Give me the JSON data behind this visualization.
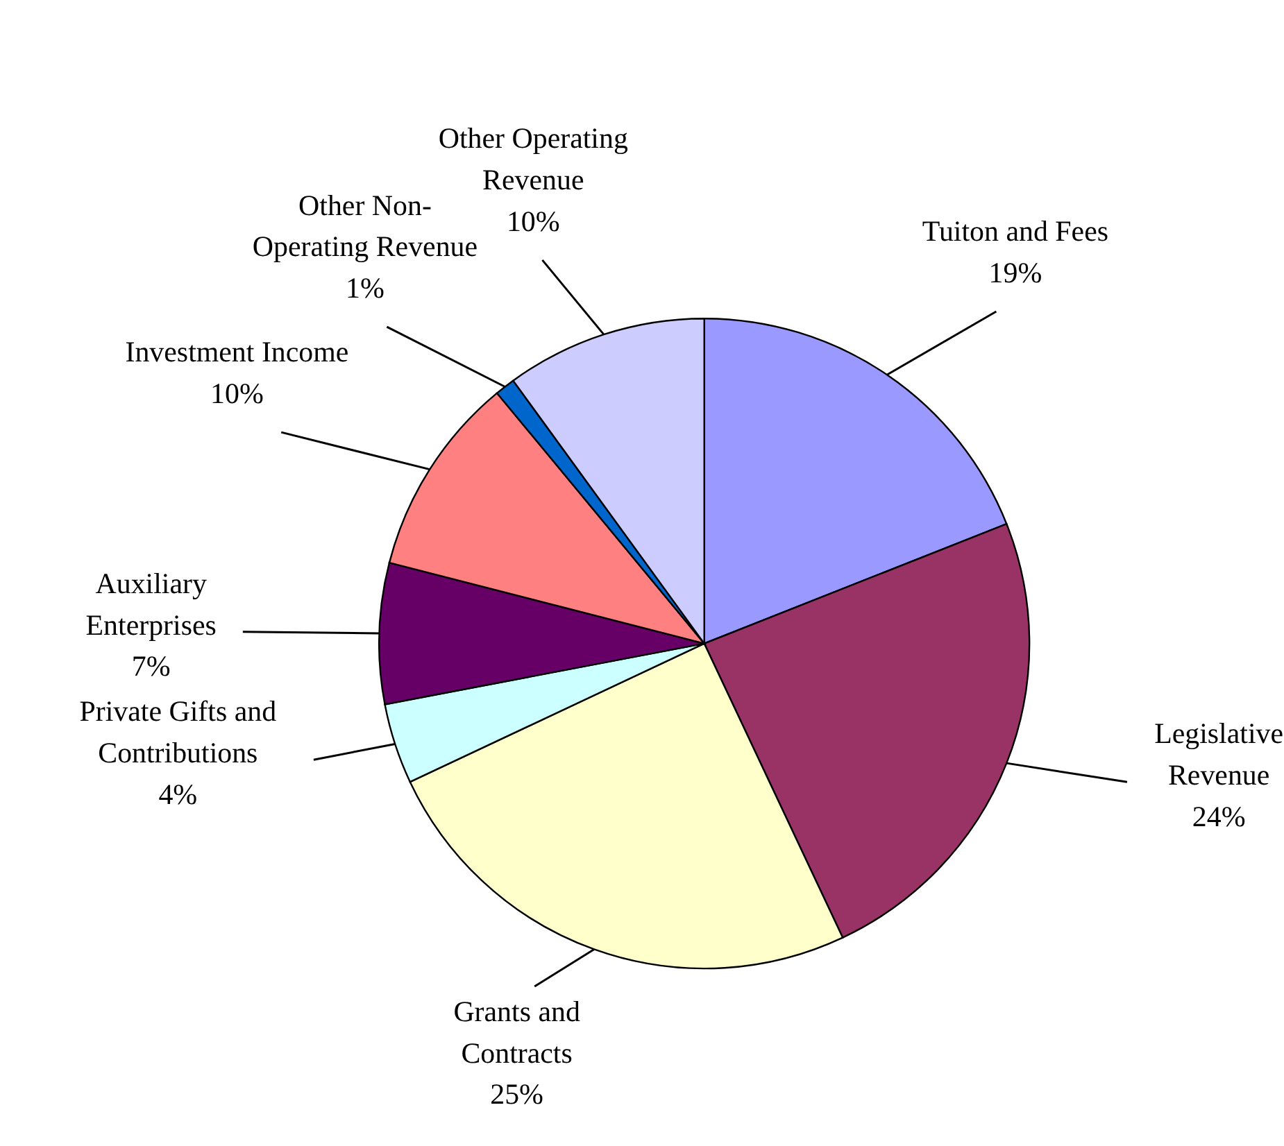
{
  "chart_data": {
    "type": "pie",
    "categories": [
      "Tuiton and Fees",
      "Legislative Revenue",
      "Grants and Contracts",
      "Private Gifts and Contributions",
      "Auxiliary Enterprises",
      "Investment Income",
      "Other Non-Operating Revenue",
      "Other Operating Revenue"
    ],
    "values": [
      19,
      24,
      25,
      4,
      7,
      10,
      1,
      10
    ],
    "value_labels": [
      "19%",
      "24%",
      "25%",
      "4%",
      "7%",
      "10%",
      "1%",
      "10%"
    ],
    "colors": [
      "#9999ff",
      "#993366",
      "#ffffcc",
      "#ccffff",
      "#660066",
      "#ff8080",
      "#0066cc",
      "#ccccff"
    ]
  }
}
